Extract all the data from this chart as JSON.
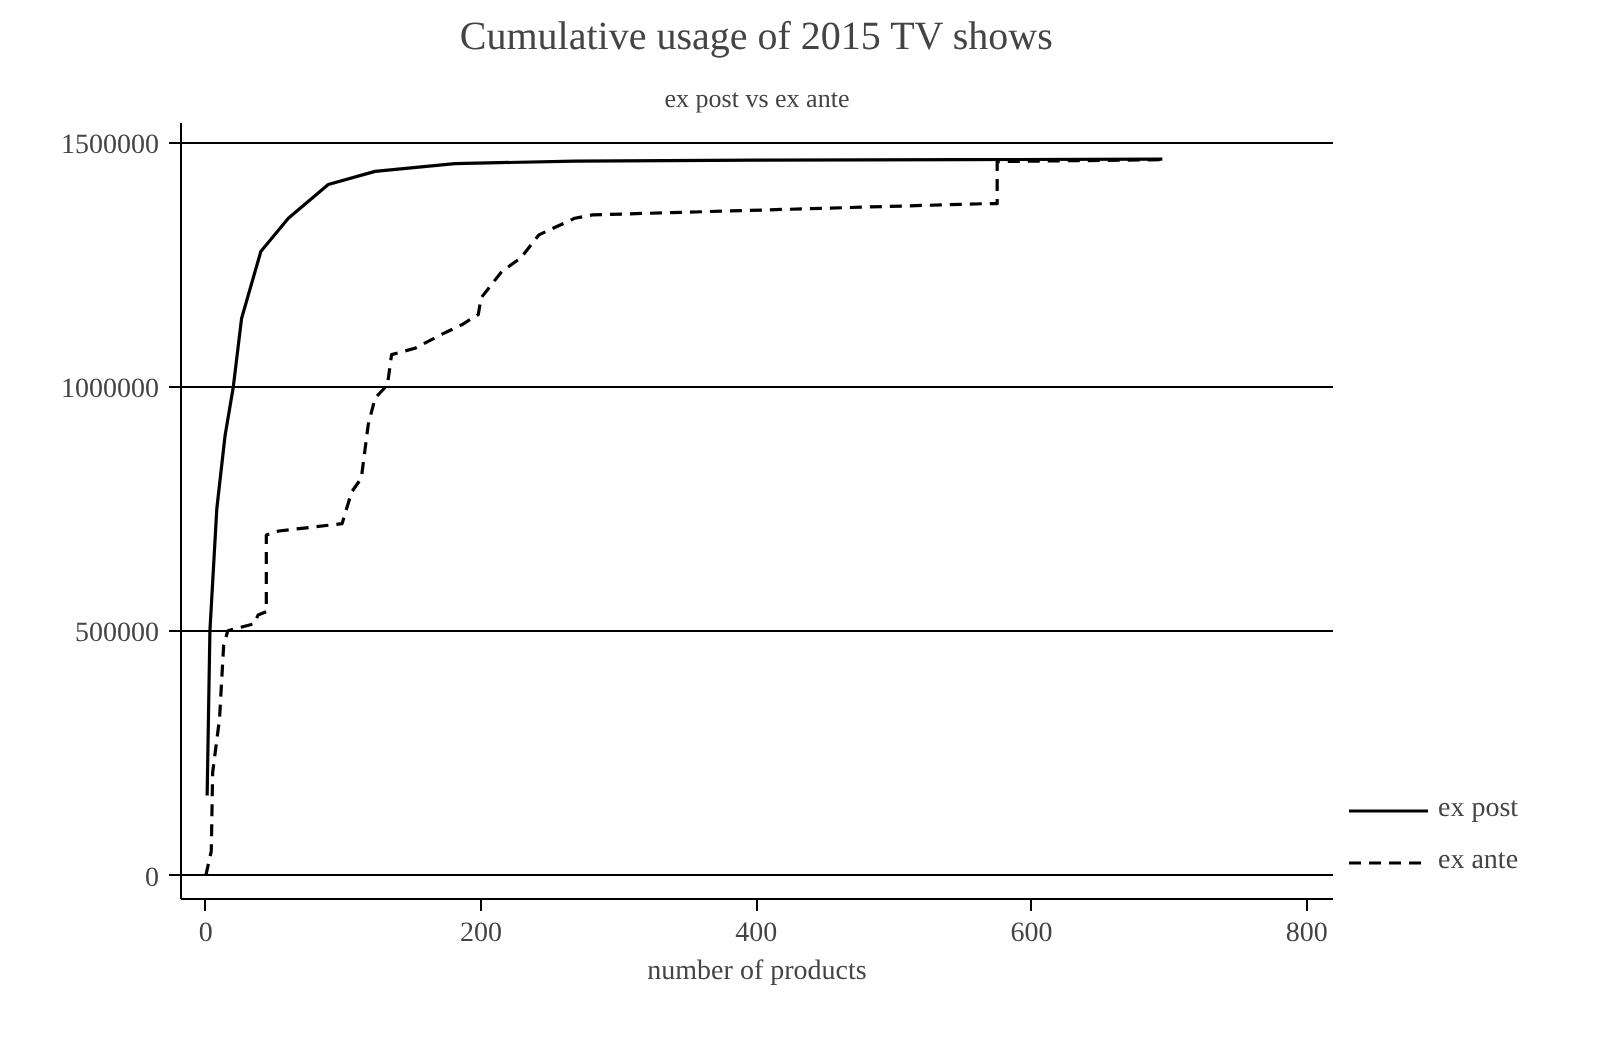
{
  "chart_data": {
    "type": "line",
    "title": "Cumulative usage of 2015 TV shows",
    "subtitle": "ex post vs ex ante",
    "xlabel": "number of products",
    "xlim": [
      -18,
      819
    ],
    "xticks": [
      0,
      200,
      400,
      600,
      800
    ],
    "ylim": [
      -48000,
      1540000
    ],
    "yticks": [
      0,
      500000,
      1000000,
      1500000
    ],
    "grid": "y",
    "legend": "right",
    "series": [
      {
        "name": "ex post",
        "color": "#000000",
        "line_style": "solid",
        "x": [
          1,
          3,
          8,
          14,
          20,
          26,
          40,
          60,
          89,
          123,
          181,
          268,
          400,
          550,
          695
        ],
        "values": [
          164000,
          500000,
          750000,
          900000,
          1000000,
          1140000,
          1277000,
          1345000,
          1414000,
          1441000,
          1457000,
          1462000,
          1464000,
          1465000,
          1466000
        ]
      },
      {
        "name": "ex ante",
        "color": "#000000",
        "line_style": "dashed",
        "x": [
          0,
          4,
          5,
          10,
          13,
          16,
          35,
          38,
          44,
          44,
          53,
          99,
          106,
          113,
          118,
          123,
          132,
          135,
          152,
          171,
          186,
          198,
          200,
          215,
          229,
          242,
          268,
          281,
          567,
          575,
          575,
          695
        ],
        "values": [
          0,
          50000,
          211000,
          321000,
          471000,
          501000,
          515000,
          533000,
          540000,
          697000,
          705000,
          720000,
          785000,
          813000,
          922000,
          977000,
          1004000,
          1066000,
          1079000,
          1107000,
          1127000,
          1148000,
          1182000,
          1236000,
          1264000,
          1311000,
          1345000,
          1352000,
          1375000,
          1375000,
          1461000,
          1465000
        ]
      }
    ]
  }
}
